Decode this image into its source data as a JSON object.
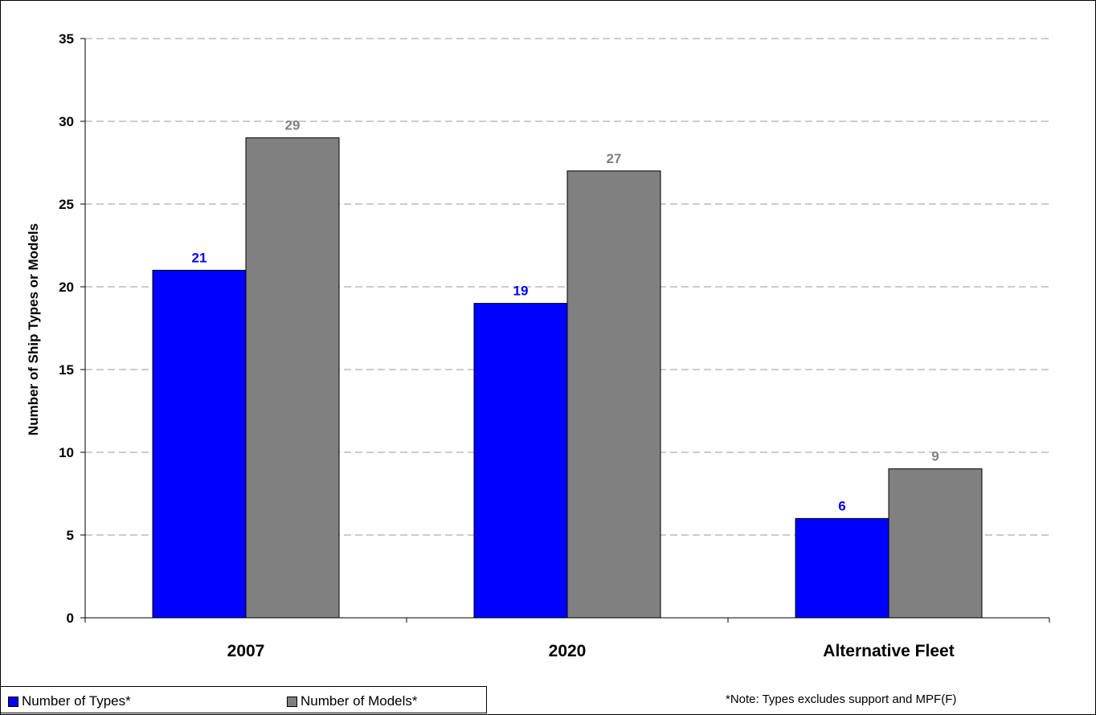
{
  "chart_data": {
    "type": "bar",
    "categories": [
      "2007",
      "2020",
      "Alternative Fleet"
    ],
    "series": [
      {
        "name": "Number of Types*",
        "values": [
          21,
          19,
          6
        ],
        "color": "#0000ff",
        "label_color": "#0000ff"
      },
      {
        "name": "Number of Models*",
        "values": [
          29,
          27,
          9
        ],
        "color": "#808080",
        "label_color": "#808080"
      }
    ],
    "ylabel": "Number of Ship Types or Models",
    "ylim": [
      0,
      35
    ],
    "yticks": [
      0,
      5,
      10,
      15,
      20,
      25,
      30,
      35
    ],
    "grid": true,
    "legend": "bottom-left",
    "note": "*Note: Types excludes support and MPF(F)"
  }
}
